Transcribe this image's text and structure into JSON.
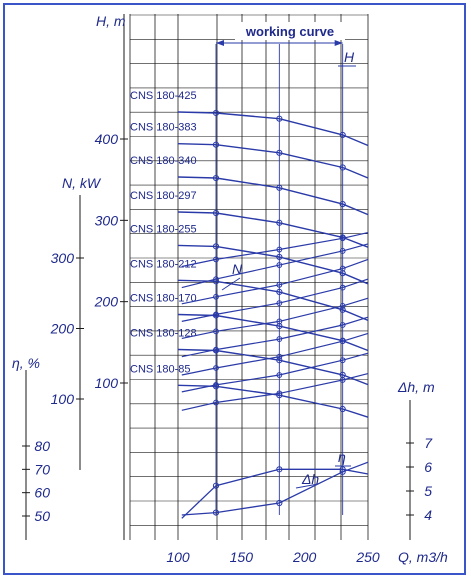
{
  "chart_data": {
    "type": "line",
    "title": "working curve",
    "xlabel": "Q, m3/h",
    "xlim": [
      100,
      250
    ],
    "x_ticks": [
      "100",
      "150",
      "200",
      "250"
    ],
    "y_axes": {
      "H": {
        "label": "H, m",
        "ticks": [
          "100",
          "200",
          "300",
          "400"
        ],
        "range": [
          80,
          440
        ]
      },
      "N": {
        "label": "N, kW",
        "ticks": [
          "100",
          "200",
          "300"
        ],
        "range": [
          40,
          330
        ]
      },
      "eta": {
        "label": "η, %",
        "ticks": [
          "50",
          "60",
          "70",
          "80"
        ],
        "range": [
          46,
          80
        ]
      },
      "dh": {
        "label": "Δh, m",
        "ticks": [
          "4",
          "5",
          "6",
          "7"
        ],
        "range": [
          3.6,
          7
        ]
      }
    },
    "head_curves": [
      {
        "name": "CNS 180-425",
        "x": [
          130,
          180,
          230,
          250
        ],
        "y": [
          432,
          425,
          405,
          392
        ]
      },
      {
        "name": "CNS 180-383",
        "x": [
          130,
          180,
          230,
          250
        ],
        "y": [
          393,
          383,
          365,
          352
        ]
      },
      {
        "name": "CNS 180-340",
        "x": [
          130,
          180,
          230,
          250
        ],
        "y": [
          352,
          340,
          320,
          307
        ]
      },
      {
        "name": "CNS 180-297",
        "x": [
          130,
          180,
          230,
          250
        ],
        "y": [
          309,
          297,
          279,
          267
        ]
      },
      {
        "name": "CNS 180-255",
        "x": [
          130,
          180,
          230,
          250
        ],
        "y": [
          268,
          255,
          235,
          222
        ]
      },
      {
        "name": "CNS 180-212",
        "x": [
          130,
          180,
          230,
          250
        ],
        "y": [
          225,
          212,
          190,
          177
        ]
      },
      {
        "name": "CNS 180-170",
        "x": [
          130,
          180,
          230,
          250
        ],
        "y": [
          183,
          170,
          152,
          140
        ]
      },
      {
        "name": "CNS 180-128",
        "x": [
          130,
          180,
          230,
          250
        ],
        "y": [
          140,
          128,
          110,
          98
        ]
      },
      {
        "name": "CNS 180-85",
        "x": [
          130,
          180,
          230,
          250
        ],
        "y": [
          96,
          85,
          68,
          58
        ]
      }
    ],
    "power_curves": [
      {
        "x": [
          103,
          130,
          180,
          230,
          250
        ],
        "y": [
          288,
          298,
          312,
          328,
          336
        ]
      },
      {
        "x": [
          103,
          130,
          180,
          230,
          250
        ],
        "y": [
          258,
          270,
          290,
          310,
          320
        ]
      },
      {
        "x": [
          103,
          130,
          180,
          230,
          250
        ],
        "y": [
          235,
          245,
          262,
          285,
          298
        ]
      },
      {
        "x": [
          103,
          130,
          180,
          230,
          250
        ],
        "y": [
          210,
          220,
          236,
          258,
          270
        ]
      },
      {
        "x": [
          103,
          130,
          180,
          230,
          250
        ],
        "y": [
          186,
          196,
          210,
          232,
          243
        ]
      },
      {
        "x": [
          103,
          130,
          180,
          230,
          250
        ],
        "y": [
          160,
          170,
          185,
          205,
          216
        ]
      },
      {
        "x": [
          103,
          130,
          180,
          230,
          250
        ],
        "y": [
          134,
          144,
          160,
          182,
          193
        ]
      },
      {
        "x": [
          103,
          130,
          180,
          230,
          250
        ],
        "y": [
          110,
          120,
          134,
          155,
          165
        ]
      },
      {
        "x": [
          103,
          130,
          180,
          230,
          250
        ],
        "y": [
          84,
          95,
          108,
          127,
          136
        ]
      }
    ],
    "efficiency_curve": {
      "name": "η",
      "x": [
        103,
        130,
        180,
        230,
        250
      ],
      "y": [
        49,
        63,
        70,
        70,
        68
      ]
    },
    "npsh_curve": {
      "name": "Δh",
      "x": [
        103,
        130,
        180,
        230,
        250
      ],
      "y": [
        4.0,
        4.1,
        4.5,
        5.8,
        6.2
      ]
    },
    "annotations": [
      "N",
      "H",
      "η",
      "Δh"
    ],
    "working_range": [
      130,
      230
    ]
  }
}
